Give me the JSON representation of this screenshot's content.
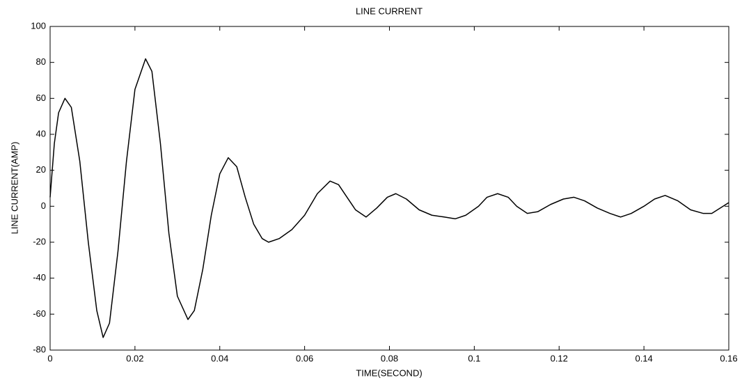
{
  "chart_data": {
    "type": "line",
    "title": "LINE CURRENT",
    "x_label": "TIME(SECOND)",
    "y_label": "LINE CURRENT(AMP)",
    "x": [
      0,
      0.001,
      0.002,
      0.0035,
      0.005,
      0.007,
      0.009,
      0.011,
      0.0125,
      0.014,
      0.016,
      0.018,
      0.02,
      0.0225,
      0.024,
      0.026,
      0.028,
      0.03,
      0.0325,
      0.034,
      0.036,
      0.038,
      0.04,
      0.042,
      0.044,
      0.046,
      0.048,
      0.05,
      0.0515,
      0.054,
      0.057,
      0.06,
      0.063,
      0.066,
      0.068,
      0.07,
      0.072,
      0.0745,
      0.077,
      0.0795,
      0.0815,
      0.084,
      0.087,
      0.09,
      0.093,
      0.0955,
      0.098,
      0.101,
      0.103,
      0.1055,
      0.108,
      0.11,
      0.1125,
      0.115,
      0.118,
      0.121,
      0.1235,
      0.126,
      0.129,
      0.132,
      0.1345,
      0.137,
      0.14,
      0.1425,
      0.145,
      0.148,
      0.151,
      0.154,
      0.156,
      0.158,
      0.16
    ],
    "series": [
      {
        "name": "line current",
        "color": "#000000",
        "values": [
          5,
          35,
          52,
          60,
          55,
          25,
          -20,
          -58,
          -73,
          -65,
          -25,
          25,
          65,
          82,
          75,
          35,
          -15,
          -50,
          -63,
          -58,
          -35,
          -5,
          18,
          27,
          22,
          5,
          -10,
          -18,
          -20,
          -18,
          -13,
          -5,
          7,
          14,
          12,
          5,
          -2,
          -6,
          -1,
          5,
          7,
          4,
          -2,
          -5,
          -6,
          -7,
          -5,
          0,
          5,
          7,
          5,
          0,
          -4,
          -3,
          1,
          4,
          5,
          3,
          -1,
          -4,
          -6,
          -4,
          0,
          4,
          6,
          3,
          -2,
          -4,
          -4,
          -1,
          2
        ]
      }
    ],
    "xlim": [
      0,
      0.16
    ],
    "xticks": [
      0,
      0.02,
      0.04,
      0.06,
      0.08,
      0.1,
      0.12,
      0.14,
      0.16
    ],
    "ylim": [
      -80,
      100
    ],
    "yticks": [
      -80,
      -60,
      -40,
      -20,
      0,
      20,
      40,
      60,
      80,
      100
    ],
    "grid": false
  }
}
